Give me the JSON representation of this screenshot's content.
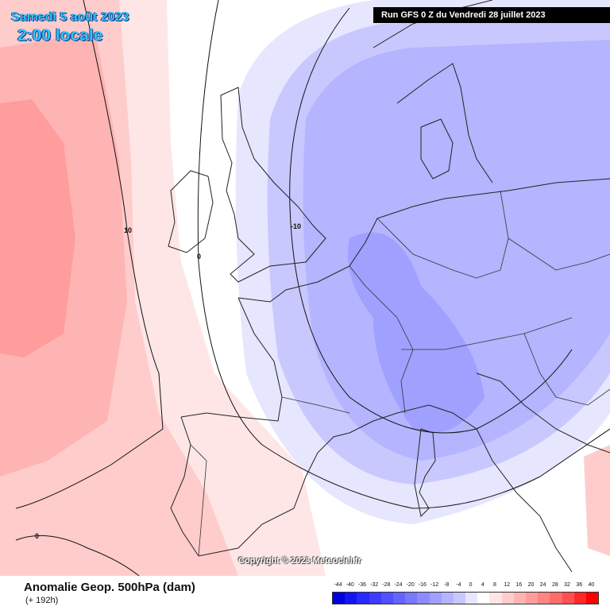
{
  "header": {
    "date": "Samedi 5 août 2023",
    "time": "2:00 locale",
    "run": "Run GFS 0 Z du Vendredi 28 juillet 2023"
  },
  "map": {
    "copyright": "Copyright © 2023 Meteociel.fr",
    "contour_labels": [
      "10",
      "0",
      "-10",
      "0"
    ]
  },
  "footer": {
    "title": "Anomalie Geop. 500hPa (dam)",
    "lead": "(+ 192h)"
  },
  "legend": {
    "labels": [
      "-44",
      "-40",
      "-36",
      "-32",
      "-28",
      "-24",
      "-20",
      "-16",
      "-12",
      "-8",
      "-4",
      "0",
      "4",
      "8",
      "12",
      "16",
      "20",
      "24",
      "28",
      "32",
      "36",
      "40"
    ],
    "colors": [
      "#0000dc",
      "#1414f0",
      "#2828ff",
      "#3c3cff",
      "#5050ff",
      "#6464ff",
      "#7878ff",
      "#8c8cff",
      "#a0a0ff",
      "#b4b4ff",
      "#c8c8ff",
      "#e6e6ff",
      "#ffffff",
      "#ffe6e6",
      "#ffcccc",
      "#ffb4b4",
      "#ff9c9c",
      "#ff8484",
      "#ff6c6c",
      "#ff5050",
      "#ff2828",
      "#ff0000"
    ]
  }
}
